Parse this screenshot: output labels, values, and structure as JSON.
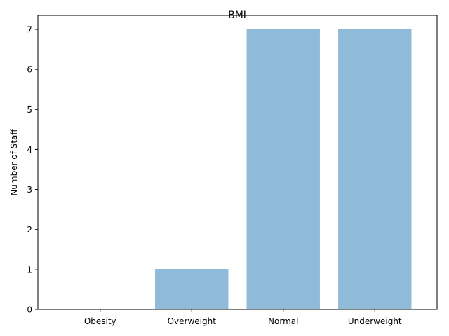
{
  "chart_data": {
    "type": "bar",
    "title": "BMI",
    "xlabel": "",
    "ylabel": "Number of Staff",
    "categories": [
      "Obesity",
      "Overweight",
      "Normal",
      "Underweight"
    ],
    "values": [
      0,
      1,
      7,
      7
    ],
    "ylim": [
      0,
      7.35
    ],
    "yticks": [
      "0",
      "1",
      "2",
      "3",
      "4",
      "5",
      "6",
      "7"
    ],
    "grid": false,
    "bar_color": "#8fbbd9"
  }
}
